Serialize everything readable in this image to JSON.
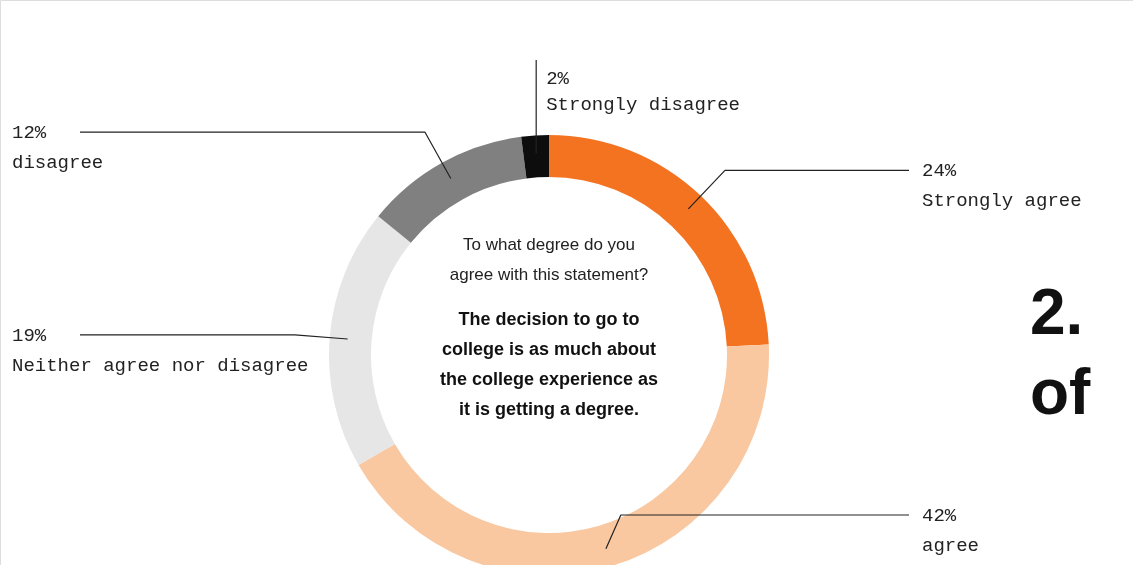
{
  "chart_data": {
    "type": "donut",
    "title": "The decision to go to college is as much about the college experience as it is getting a degree.",
    "subtitle": "To what degree do you agree with this statement?",
    "categories": [
      "Strongly agree",
      "agree",
      "Neither agree nor disagree",
      "disagree",
      "Strongly disagree"
    ],
    "values": [
      24,
      42,
      19,
      12,
      2
    ],
    "value_labels": [
      "24%",
      "42%",
      "19%",
      "12%",
      "2%"
    ],
    "colors": [
      "#f47321",
      "#f9c8a0",
      "#e6e6e6",
      "#808080",
      "#0d0d0d"
    ],
    "annotations": [
      "2.",
      "of"
    ]
  }
}
